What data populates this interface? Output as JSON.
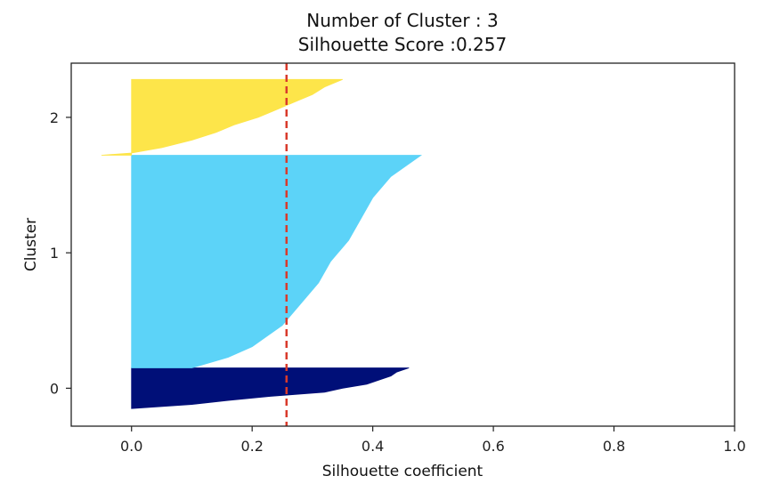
{
  "chart_data": {
    "type": "silhouette",
    "title": [
      "Number of Cluster : 3",
      "Silhouette Score :0.257"
    ],
    "xlabel": "Silhouette coefficient",
    "ylabel": "Cluster",
    "xlim": [
      -0.1,
      1.0
    ],
    "x_ticks": [
      0.0,
      0.2,
      0.4,
      0.6,
      0.8,
      1.0
    ],
    "x_tick_labels": [
      "0.0",
      "0.2",
      "0.4",
      "0.6",
      "0.8",
      "1.0"
    ],
    "y_ticks": [
      "0",
      "1",
      "2"
    ],
    "grid": false,
    "average_score": 0.257,
    "average_line_color": "#d93a2b",
    "clusters": [
      {
        "label": "0",
        "color": "#000f78",
        "y_range": [
          -0.15,
          0.15
        ],
        "profile": [
          [
            0.0,
            0.0
          ],
          [
            0.1,
            0.1
          ],
          [
            0.2,
            0.16
          ],
          [
            0.3,
            0.23
          ],
          [
            0.4,
            0.32
          ],
          [
            0.5,
            0.35
          ],
          [
            0.6,
            0.39
          ],
          [
            0.7,
            0.41
          ],
          [
            0.8,
            0.43
          ],
          [
            0.9,
            0.44
          ],
          [
            1.0,
            0.46
          ]
        ]
      },
      {
        "label": "1",
        "color": "#5cd3f8",
        "y_range": [
          0.15,
          1.72
        ],
        "profile": [
          [
            0.0,
            0.1
          ],
          [
            0.05,
            0.16
          ],
          [
            0.1,
            0.2
          ],
          [
            0.2,
            0.25
          ],
          [
            0.3,
            0.28
          ],
          [
            0.4,
            0.31
          ],
          [
            0.5,
            0.33
          ],
          [
            0.6,
            0.36
          ],
          [
            0.7,
            0.38
          ],
          [
            0.8,
            0.4
          ],
          [
            0.9,
            0.43
          ],
          [
            1.0,
            0.48
          ]
        ]
      },
      {
        "label": "2",
        "color": "#fde54a",
        "y_range": [
          1.72,
          2.28
        ],
        "profile": [
          [
            0.0,
            -0.05
          ],
          [
            0.03,
            0.0
          ],
          [
            0.1,
            0.05
          ],
          [
            0.2,
            0.1
          ],
          [
            0.3,
            0.14
          ],
          [
            0.4,
            0.17
          ],
          [
            0.5,
            0.21
          ],
          [
            0.6,
            0.24
          ],
          [
            0.7,
            0.27
          ],
          [
            0.8,
            0.3
          ],
          [
            0.9,
            0.32
          ],
          [
            1.0,
            0.35
          ]
        ]
      }
    ]
  }
}
